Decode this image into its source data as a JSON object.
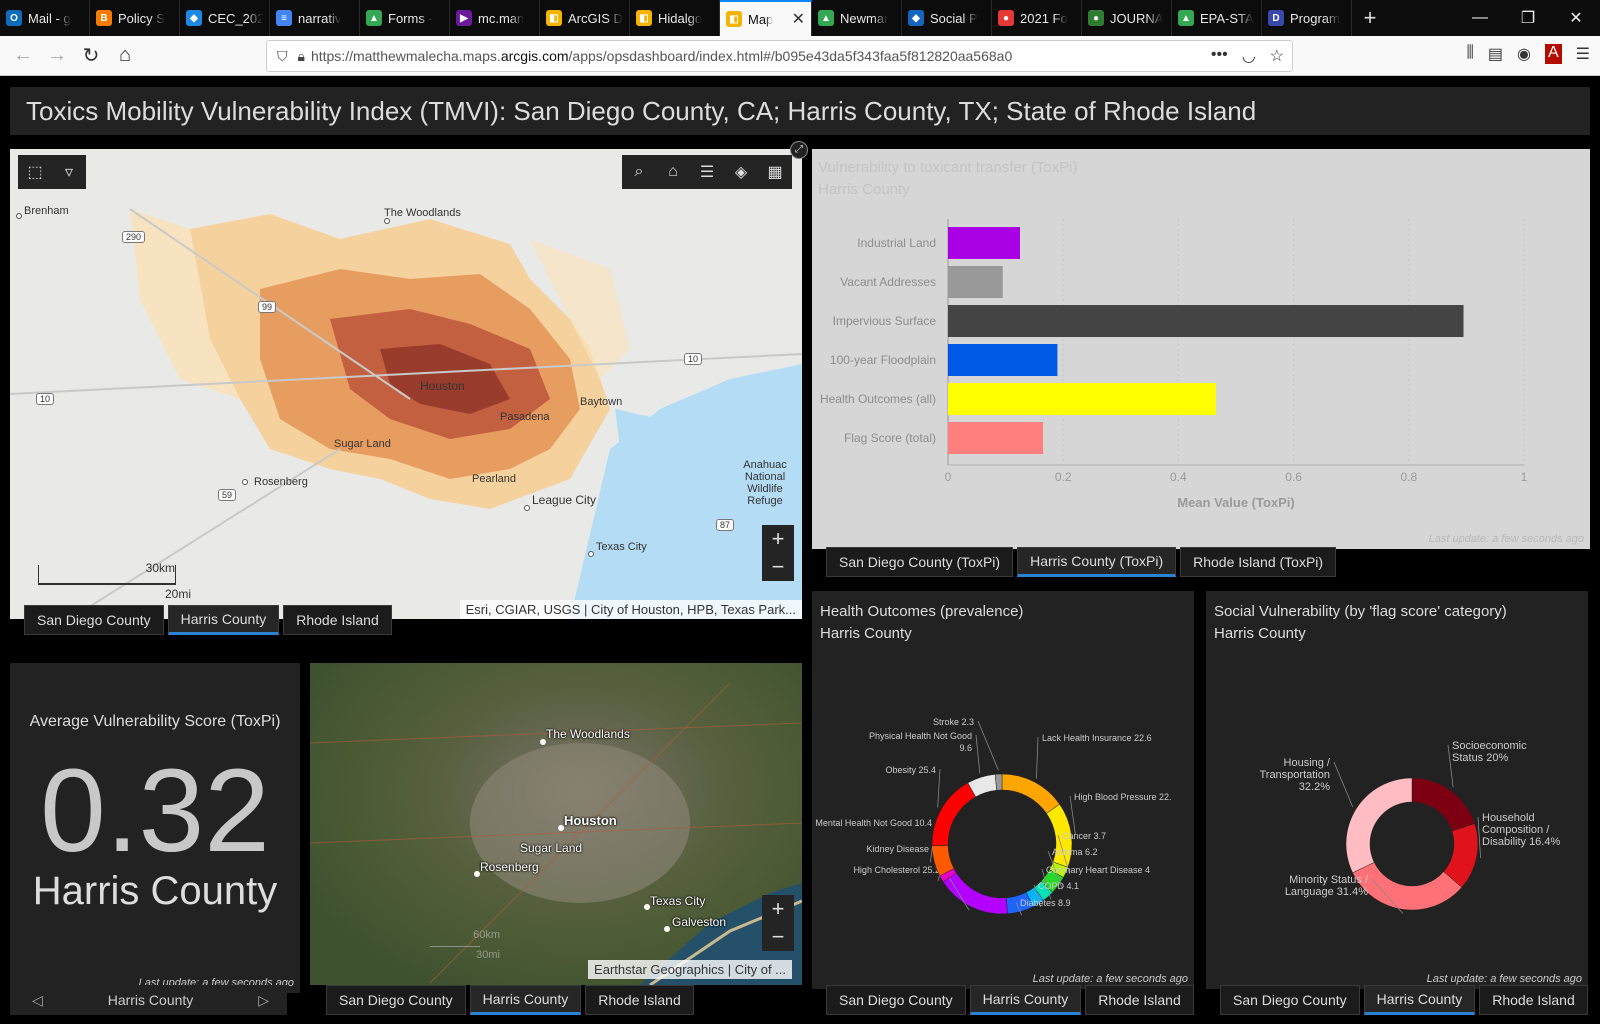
{
  "browser": {
    "tabs": [
      {
        "label": "Mail - g",
        "color": "#0f6cbd",
        "glyph": "O"
      },
      {
        "label": "Policy S",
        "color": "#f57c00",
        "glyph": "B"
      },
      {
        "label": "CEC_202",
        "color": "#1e88e5",
        "glyph": "◆"
      },
      {
        "label": "narrativ",
        "color": "#4285f4",
        "glyph": "≡"
      },
      {
        "label": "Forms -",
        "color": "#34a853",
        "glyph": "▲"
      },
      {
        "label": "mc.man",
        "color": "#6a1b9a",
        "glyph": "▶"
      },
      {
        "label": "ArcGIS D",
        "color": "#f4b400",
        "glyph": "◧"
      },
      {
        "label": "Hidalgo",
        "color": "#f4b400",
        "glyph": "◧"
      },
      {
        "label": "Map",
        "color": "#f4b400",
        "glyph": "◧",
        "active": true
      },
      {
        "label": "Newmar",
        "color": "#34a853",
        "glyph": "▲"
      },
      {
        "label": "Social P",
        "color": "#1565c0",
        "glyph": "◆"
      },
      {
        "label": "2021 Fo",
        "color": "#e53935",
        "glyph": "●"
      },
      {
        "label": "JOURNA",
        "color": "#2e7d32",
        "glyph": "●"
      },
      {
        "label": "EPA-STA",
        "color": "#34a853",
        "glyph": "▲"
      },
      {
        "label": "Program",
        "color": "#3949ab",
        "glyph": "D"
      }
    ],
    "url_prefix": "https://matthewmalecha.maps.",
    "url_domain": "arcgis.com",
    "url_suffix": "/apps/opsdashboard/index.html#/b095e43da5f343faa5f812820aa568a0"
  },
  "dashboard": {
    "title": "Toxics Mobility Vulnerability Index (TMVI): San Diego County, CA; Harris County, TX; State of Rhode Island",
    "region_tabs": [
      "San Diego County",
      "Harris County",
      "Rhode Island"
    ],
    "toxpi_tabs": [
      "San Diego County (ToxPi)",
      "Harris County (ToxPi)",
      "Rhode Island (ToxPi)"
    ],
    "active_index": 1,
    "last_update": "Last update: a few seconds ago"
  },
  "map1": {
    "labels": [
      "Brenham",
      "The Woodlands",
      "Houston",
      "Baytown",
      "Pasadena",
      "Sugar Land",
      "Rosenberg",
      "Pearland",
      "League City",
      "Texas City",
      "Anahuac National Wildlife Refuge"
    ],
    "shields": [
      "290",
      "99",
      "10",
      "10",
      "59",
      "87"
    ],
    "scale_km": "30km",
    "scale_mi": "20mi",
    "attribution": "Esri, CGIAR, USGS | City of Houston, HPB, Texas Park..."
  },
  "barchart": {
    "title": "Vulnerability to toxicant transfer (ToxPi)",
    "subtitle": "Harris County",
    "xlabel": "Mean Value (ToxPi)",
    "ticks": [
      "0",
      "0.2",
      "0.4",
      "0.6",
      "0.8",
      "1"
    ]
  },
  "score": {
    "title": "Average Vulnerability Score (ToxPi)",
    "value": "0.32",
    "county": "Harris County",
    "selector": "Harris County"
  },
  "map2": {
    "labels": [
      "The Woodlands",
      "Houston",
      "Sugar Land",
      "Rosenberg",
      "Texas City",
      "Galveston"
    ],
    "scale_km": "60km",
    "scale_mi": "30mi",
    "attribution": "Earthstar Geographics | City of ..."
  },
  "health": {
    "title": "Health Outcomes (prevalence)",
    "subtitle": "Harris County"
  },
  "social": {
    "title": "Social Vulnerability (by 'flag score' category)",
    "subtitle": "Harris County"
  },
  "chart_data": [
    {
      "type": "bar",
      "orientation": "horizontal",
      "title": "Vulnerability to toxicant transfer (ToxPi)",
      "subtitle": "Harris County",
      "categories": [
        "Industrial Land",
        "Vacant Addresses",
        "Impervious Surface",
        "100-year Floodplain",
        "Health Outcomes (all)",
        "Flag Score (total)"
      ],
      "values": [
        0.125,
        0.095,
        0.895,
        0.19,
        0.465,
        0.165
      ],
      "colors": [
        "#aa00e6",
        "#999999",
        "#444444",
        "#0059e6",
        "#ffff00",
        "#ff7f7f"
      ],
      "xlabel": "Mean Value (ToxPi)",
      "xlim": [
        0,
        1
      ],
      "grid": true
    },
    {
      "type": "pie",
      "donut": true,
      "title": "Health Outcomes (prevalence)",
      "subtitle": "Harris County",
      "labels": [
        "Lack Health Insurance 22.6",
        "High Blood Pressure 22.",
        "Cancer 3.7",
        "Asthma 6.2",
        "Coronary Heart Disease 4",
        "COPD 4.1",
        "Diabetes 8.9",
        "High Cholesterol 25.2",
        "Kidney Disease 2.3",
        "Mental Health Not Good 10.4",
        "Obesity 25.4",
        "Physical Health Not Good 9.6",
        "Stroke 2.3"
      ],
      "values": [
        22.6,
        22,
        3.7,
        6.2,
        4,
        4.1,
        8.9,
        25.2,
        2.3,
        10.4,
        25.4,
        9.6,
        2.3
      ],
      "colors": [
        "#ffa500",
        "#ffe800",
        "#b9f500",
        "#28d828",
        "#00e6b8",
        "#00b4ff",
        "#1e64ff",
        "#b400ff",
        "#e600c8",
        "#ff5a00",
        "#ff0000",
        "#e8e8e8",
        "#999999"
      ]
    },
    {
      "type": "pie",
      "donut": true,
      "title": "Social Vulnerability (by 'flag score' category)",
      "subtitle": "Harris County",
      "labels": [
        "Socioeconomic Status 20%",
        "Household Composition / Disability 16.4%",
        "Minority Status / Language 31.4%",
        "Housing / Transportation 32.2%"
      ],
      "values": [
        20,
        16.4,
        31.4,
        32.2
      ],
      "colors": [
        "#7d0012",
        "#e0121c",
        "#ff7077",
        "#ffbcc2"
      ]
    }
  ]
}
